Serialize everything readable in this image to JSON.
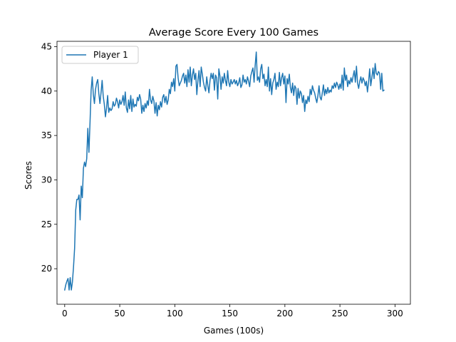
{
  "chart_data": {
    "type": "line",
    "title": "Average Score Every 100 Games",
    "xlabel": "Games (100s)",
    "ylabel": "Scores",
    "xlim": [
      -7,
      314
    ],
    "ylim": [
      16.0,
      45.6
    ],
    "xticks": [
      0,
      50,
      100,
      150,
      200,
      250,
      300
    ],
    "yticks": [
      20,
      25,
      30,
      35,
      40,
      45
    ],
    "grid": false,
    "legend_position": "top-left",
    "series": [
      {
        "name": "Player 1",
        "color": "#1f77b4",
        "x_start": 0,
        "x_step": 1,
        "values": [
          17.6,
          18.2,
          18.6,
          18.9,
          17.6,
          19.0,
          17.6,
          18.5,
          20.2,
          22.3,
          26.6,
          27.8,
          27.8,
          28.3,
          25.5,
          29.3,
          28.0,
          31.3,
          32.0,
          31.5,
          32.4,
          35.8,
          33.1,
          36.5,
          40.1,
          41.6,
          39.6,
          38.6,
          40.2,
          40.9,
          41.3,
          39.7,
          38.6,
          39.8,
          41.2,
          39.4,
          38.5,
          37.1,
          38.1,
          39.5,
          37.6,
          38.1,
          37.8,
          38.0,
          38.8,
          38.3,
          38.5,
          39.2,
          38.8,
          38.1,
          39.0,
          38.5,
          38.8,
          39.5,
          38.4,
          39.9,
          38.1,
          37.6,
          39.0,
          38.0,
          39.5,
          37.7,
          39.1,
          38.2,
          38.5,
          38.3,
          39.3,
          38.9,
          39.6,
          39.1,
          37.5,
          38.4,
          37.7,
          38.6,
          38.1,
          38.9,
          38.4,
          40.2,
          39.0,
          38.6,
          39.4,
          38.9,
          37.5,
          38.7,
          37.2,
          38.4,
          37.9,
          38.8,
          38.2,
          39.3,
          39.6,
          38.7,
          39.4,
          38.5,
          39.0,
          40.2,
          39.7,
          41.0,
          40.5,
          41.4,
          40.0,
          42.8,
          43.0,
          41.5,
          40.6,
          40.9,
          41.2,
          41.7,
          42.0,
          40.9,
          41.8,
          40.5,
          42.4,
          41.0,
          42.7,
          40.6,
          41.8,
          42.5,
          41.3,
          42.0,
          39.6,
          41.2,
          42.3,
          40.5,
          42.7,
          41.9,
          41.0,
          40.4,
          40.0,
          41.6,
          40.6,
          39.8,
          41.2,
          42.0,
          41.4,
          42.0,
          40.1,
          41.8,
          41.5,
          39.1,
          42.5,
          41.7,
          40.2,
          41.6,
          40.9,
          42.0,
          41.2,
          40.6,
          42.3,
          41.0,
          40.5,
          41.3,
          40.8,
          41.0,
          41.3,
          40.8,
          41.2,
          40.6,
          40.9,
          41.5,
          40.4,
          40.7,
          41.8,
          41.0,
          41.3,
          40.8,
          41.6,
          41.1,
          40.5,
          41.7,
          42.2,
          42.6,
          41.0,
          42.9,
          44.4,
          41.2,
          41.6,
          41.0,
          42.5,
          43.0,
          41.4,
          41.9,
          40.6,
          41.3,
          40.5,
          42.7,
          40.0,
          41.4,
          39.6,
          40.9,
          41.3,
          42.0,
          40.2,
          41.0,
          40.5,
          42.1,
          40.6,
          41.5,
          42.0,
          40.8,
          41.7,
          38.7,
          41.4,
          40.8,
          41.9,
          40.4,
          39.8,
          40.9,
          39.5,
          40.6,
          40.3,
          38.5,
          40.3,
          39.2,
          40.0,
          39.7,
          38.7,
          39.5,
          37.7,
          39.0,
          38.6,
          39.4,
          38.8,
          40.2,
          39.6,
          40.6,
          40.1,
          39.8,
          39.2,
          38.7,
          39.5,
          40.6,
          39.3,
          39.0,
          39.8,
          40.7,
          39.5,
          40.2,
          39.7,
          40.4,
          39.8,
          40.1,
          39.9,
          40.6,
          40.3,
          40.9,
          40.4,
          41.0,
          40.7,
          40.2,
          40.8,
          40.3,
          41.8,
          40.1,
          42.6,
          41.2,
          41.8,
          40.5,
          41.2,
          40.8,
          41.5,
          41.0,
          41.7,
          42.3,
          41.0,
          42.8,
          40.9,
          40.3,
          41.1,
          41.6,
          40.9,
          41.5,
          41.2,
          40.6,
          41.1,
          39.9,
          41.0,
          42.5,
          40.6,
          41.5,
          42.6,
          41.4,
          43.1,
          42.0,
          41.8,
          42.2,
          42.0,
          40.2,
          42.0,
          40.0,
          40.1
        ]
      }
    ]
  }
}
